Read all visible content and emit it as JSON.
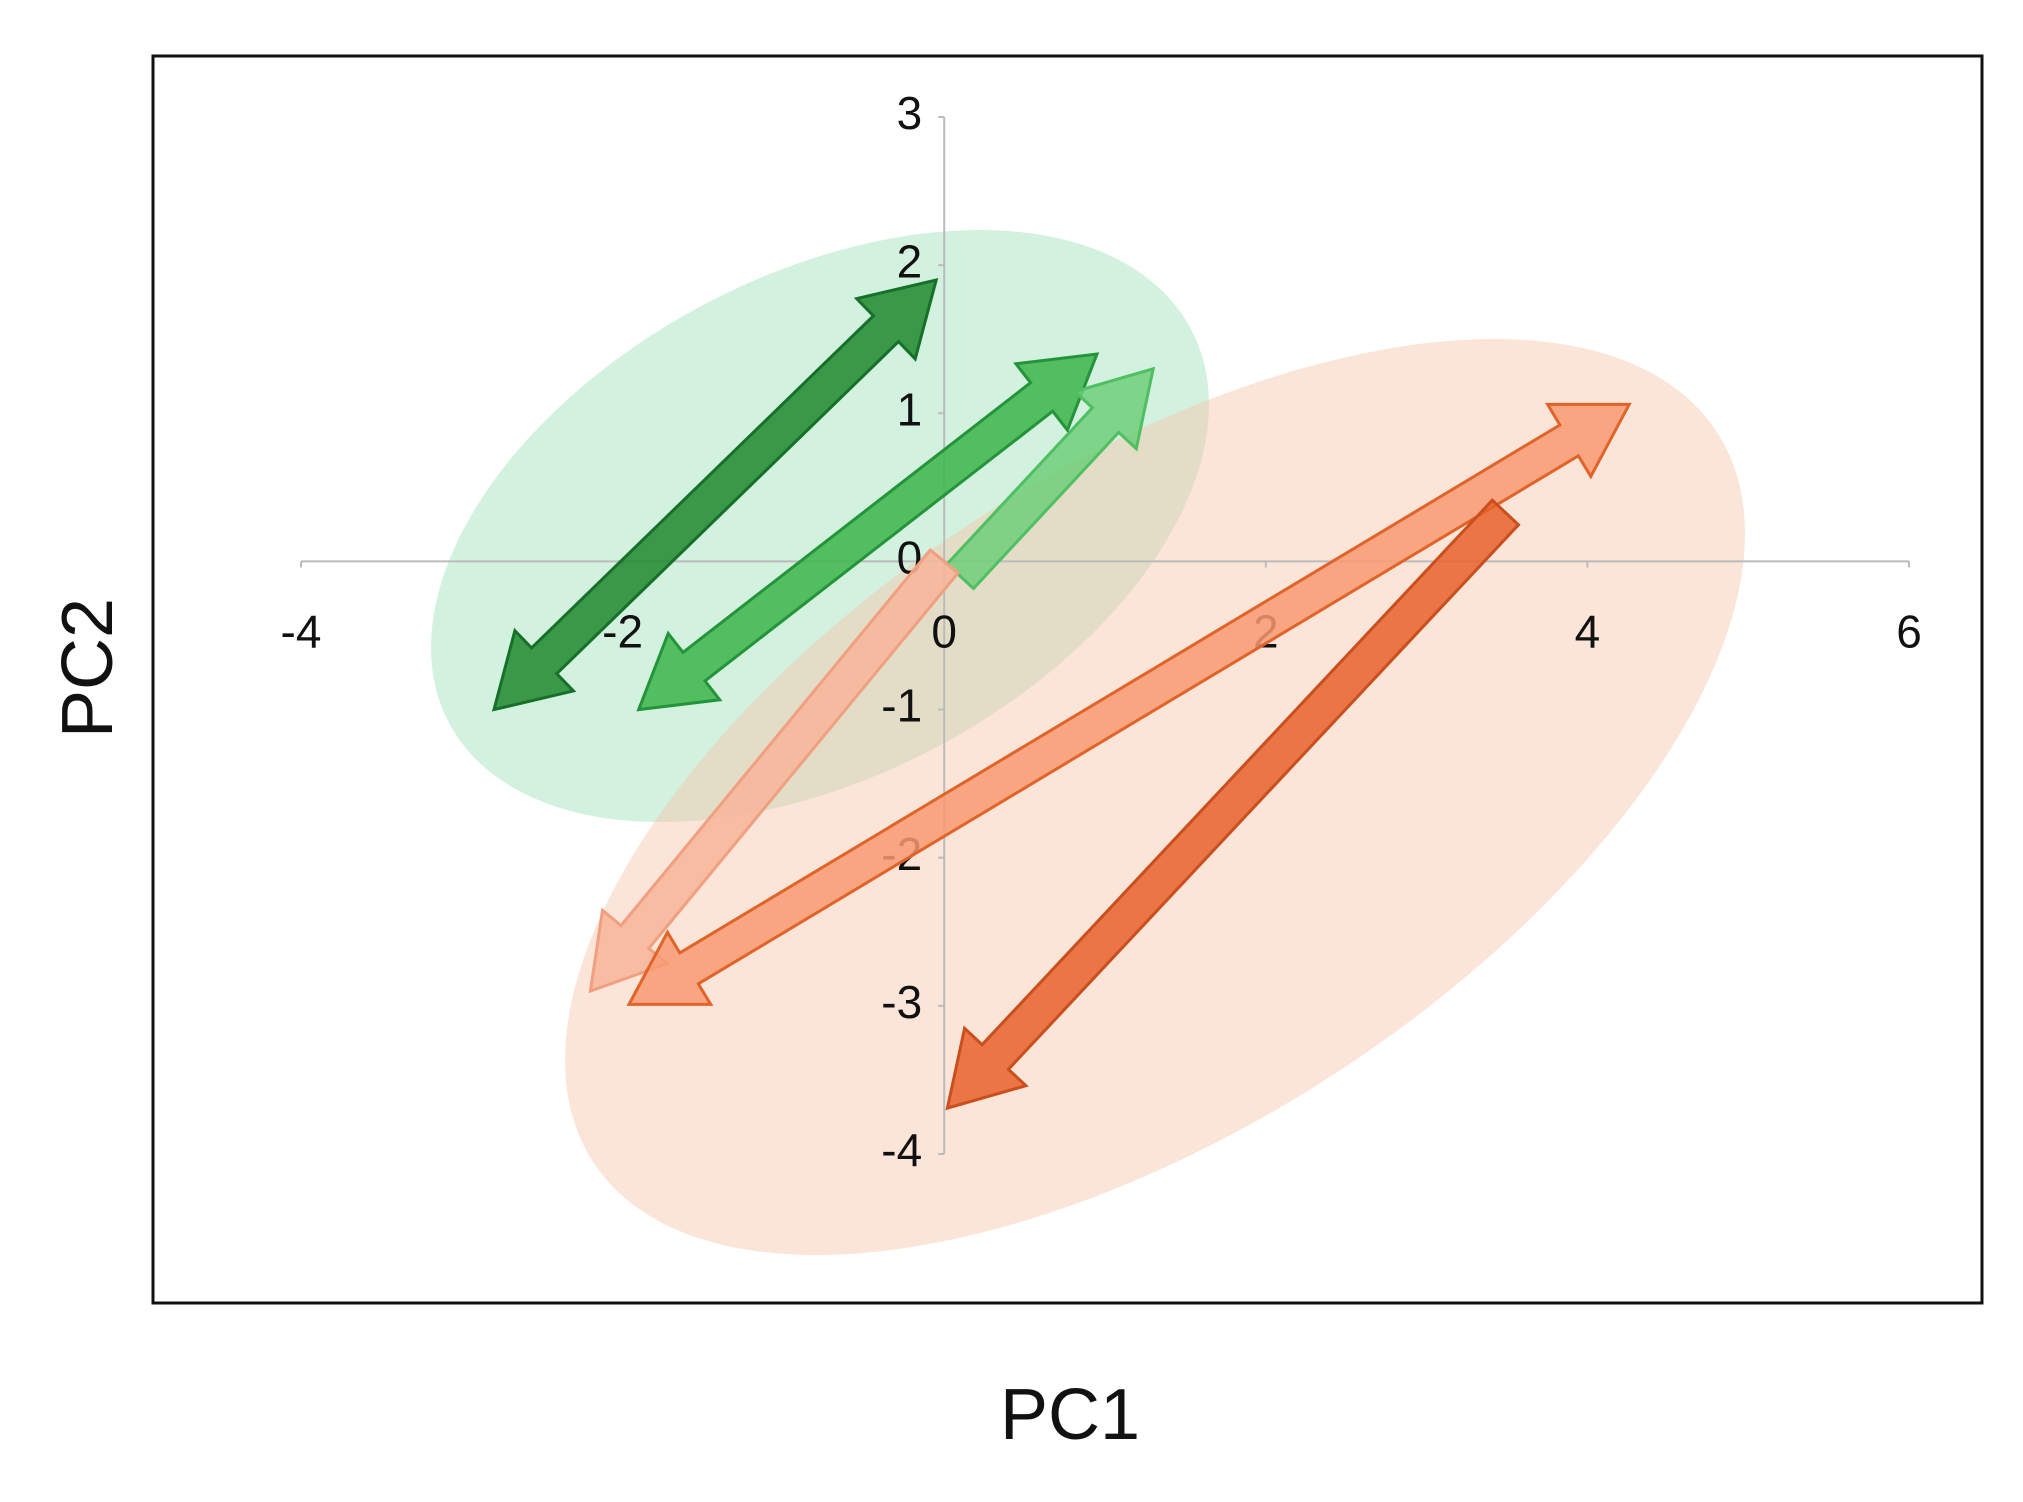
{
  "chart_data": {
    "type": "arrow",
    "xlabel": "PC1",
    "ylabel": "PC2",
    "xlim": [
      -4,
      6
    ],
    "ylim": [
      -4,
      3
    ],
    "xticks": [
      -4,
      -2,
      0,
      2,
      4,
      6
    ],
    "yticks": [
      -4,
      -3,
      -2,
      -1,
      0,
      1,
      2,
      3
    ],
    "series": [
      {
        "color": "#1e8a2e",
        "outline": "#17702a",
        "heads": "both",
        "x": [
          -2.8,
          -0.05
        ],
        "values": [
          -1.0,
          1.9
        ]
      },
      {
        "color": "#3cb54a",
        "outline": "#23943a",
        "heads": "both",
        "x": [
          -1.9,
          0.95
        ],
        "values": [
          -1.0,
          1.4
        ]
      },
      {
        "color": "#6fcf7a",
        "outline": "#4fbf62",
        "heads": "end",
        "x": [
          0.1,
          1.3
        ],
        "values": [
          -0.1,
          1.3
        ]
      },
      {
        "color": "#f7b59a",
        "outline": "#f0a080",
        "heads": "end",
        "x": [
          0.0,
          -2.2
        ],
        "values": [
          0.0,
          -2.9
        ]
      },
      {
        "color": "#f99a72",
        "outline": "#e0642a",
        "heads": "both",
        "x": [
          -1.96,
          4.26
        ],
        "values": [
          -2.99,
          1.06
        ]
      },
      {
        "color": "#e8612a",
        "outline": "#c9501e",
        "heads": "end",
        "x": [
          3.49,
          0.02
        ],
        "values": [
          0.33,
          -3.69
        ]
      }
    ]
  }
}
